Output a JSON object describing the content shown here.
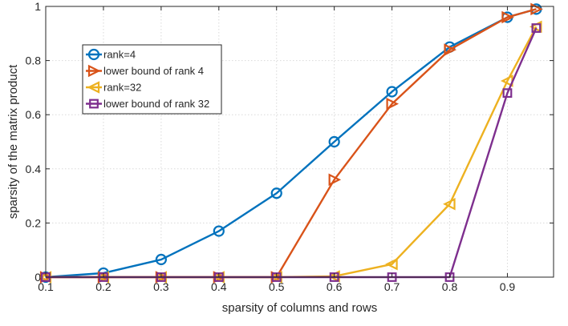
{
  "chart_data": {
    "type": "line",
    "title": "",
    "xlabel": "sparsity of columns and rows",
    "ylabel": "sparsity of the matrix product",
    "xlim": [
      0.1,
      0.98
    ],
    "ylim": [
      0,
      1
    ],
    "xticks": [
      0.1,
      0.2,
      0.3,
      0.4,
      0.5,
      0.6,
      0.7,
      0.8,
      0.9
    ],
    "xtick_labels": [
      "0.1",
      "0.2",
      "0.3",
      "0.4",
      "0.5",
      "0.6",
      "0.7",
      "0.8",
      "0.9"
    ],
    "yticks": [
      0,
      0.2,
      0.4,
      0.6,
      0.8,
      1
    ],
    "ytick_labels": [
      "0",
      "0.2",
      "0.4",
      "0.6",
      "0.8",
      "1"
    ],
    "grid": true,
    "legend_position": "upper-left",
    "series": [
      {
        "name": "rank=4",
        "color": "#0072BD",
        "marker": "circle",
        "x": [
          0.1,
          0.2,
          0.3,
          0.4,
          0.5,
          0.6,
          0.7,
          0.8,
          0.9,
          0.95
        ],
        "y": [
          0,
          0.015,
          0.065,
          0.17,
          0.31,
          0.5,
          0.685,
          0.85,
          0.96,
          0.99
        ]
      },
      {
        "name": "lower bound of rank 4",
        "color": "#D95319",
        "marker": "triangle-right",
        "x": [
          0.1,
          0.2,
          0.3,
          0.4,
          0.5,
          0.6,
          0.7,
          0.8,
          0.9,
          0.95
        ],
        "y": [
          0,
          0,
          0,
          0,
          0,
          0.36,
          0.64,
          0.84,
          0.96,
          0.99
        ]
      },
      {
        "name": "rank=32",
        "color": "#EDB120",
        "marker": "triangle-left",
        "x": [
          0.1,
          0.2,
          0.3,
          0.4,
          0.5,
          0.6,
          0.7,
          0.8,
          0.9,
          0.95
        ],
        "y": [
          0,
          0,
          0,
          0,
          0,
          0.003,
          0.048,
          0.27,
          0.725,
          0.925
        ]
      },
      {
        "name": "lower bound of rank 32",
        "color": "#7E2F8E",
        "marker": "square",
        "x": [
          0.1,
          0.2,
          0.3,
          0.4,
          0.5,
          0.6,
          0.7,
          0.8,
          0.9,
          0.95
        ],
        "y": [
          0,
          0,
          0,
          0,
          0,
          0,
          0,
          0,
          0.68,
          0.92
        ]
      }
    ]
  }
}
